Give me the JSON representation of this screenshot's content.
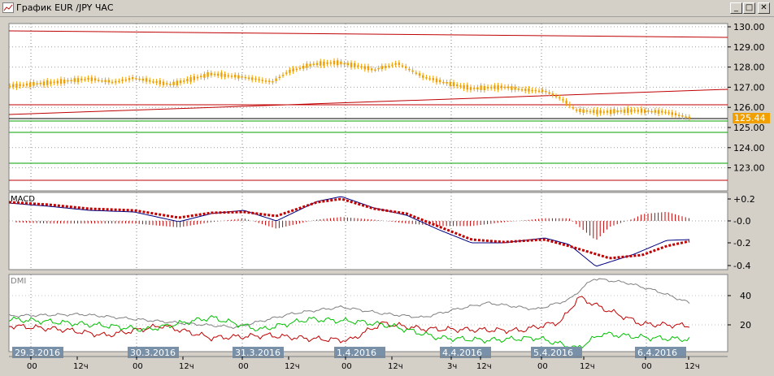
{
  "window": {
    "title": "График EUR /JPY  ЧАС",
    "buttons": {
      "minimize": "_",
      "maximize": "□",
      "close": "✕"
    }
  },
  "price_panel": {
    "y_ticks": [
      "130.00",
      "129.00",
      "128.00",
      "127.00",
      "126.00",
      "125.00",
      "124.00",
      "123.00"
    ],
    "current_price": "125.44",
    "current_price_color": "#f0a000"
  },
  "macd_panel": {
    "label": "MACD",
    "y_ticks": [
      "+0.2",
      "-0.0",
      "-0.2",
      "-0.4"
    ]
  },
  "dmi_panel": {
    "label": "DMI",
    "y_ticks": [
      "40",
      "20"
    ]
  },
  "time_axis": {
    "dates": [
      "29.3.2016",
      "30.3.2016",
      "31.3.2016",
      "1.4.2016",
      "4.4.2016",
      "5.4.2016",
      "6.4.2016"
    ],
    "hours": [
      "00",
      "12ч",
      "00",
      "12ч",
      "00",
      "12ч",
      "00",
      "12ч",
      "3ч",
      "12ч",
      "00",
      "12ч",
      "00",
      "12ч"
    ]
  },
  "colors": {
    "candle": "#f0a000",
    "resistance": "#c00000",
    "support": "#00a000",
    "macd_line": "#000080",
    "signal_line": "#c00000",
    "adx": "#808080",
    "plus_di": "#c00000",
    "minus_di": "#00c000"
  }
}
